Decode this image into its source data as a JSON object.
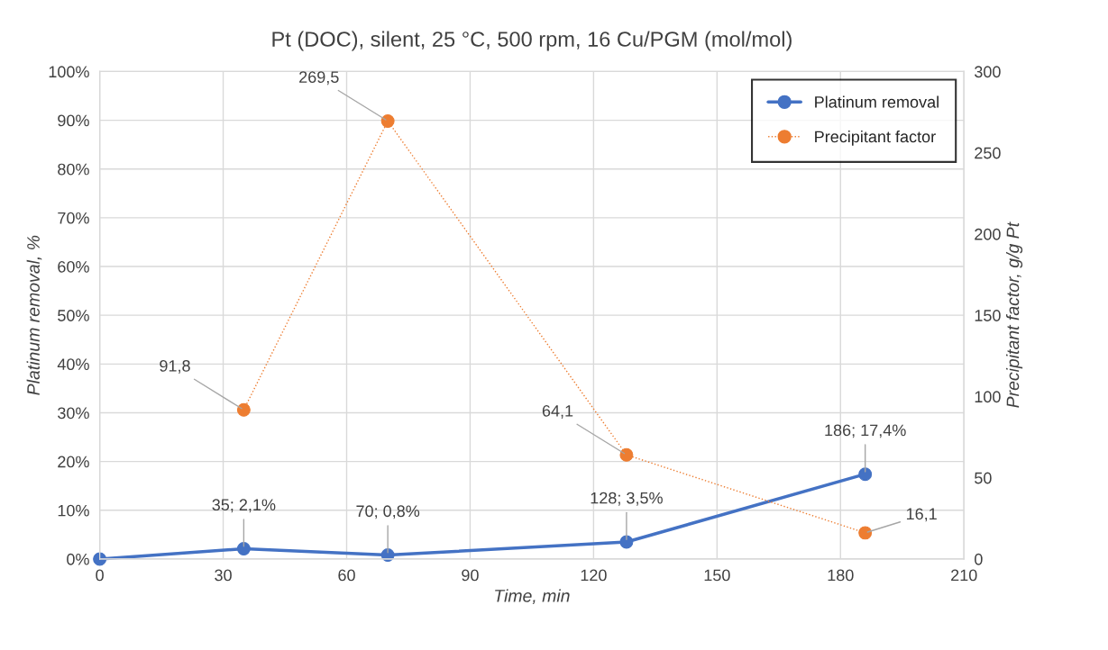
{
  "chart_data": {
    "type": "line",
    "title": "Pt (DOC), silent, 25 °C, 500 rpm, 16 Cu/PGM (mol/mol)",
    "xlabel": "Time, min",
    "ylabel": "Platinum removal, %",
    "y2label": "Precipitant factor, g/g Pt",
    "xlim": [
      0,
      210
    ],
    "xticks": [
      0,
      30,
      60,
      90,
      120,
      150,
      180,
      210
    ],
    "ylim": [
      0,
      100
    ],
    "yticks": [
      {
        "value": 0,
        "label": "0%"
      },
      {
        "value": 10,
        "label": "10%"
      },
      {
        "value": 20,
        "label": "20%"
      },
      {
        "value": 30,
        "label": "30%"
      },
      {
        "value": 40,
        "label": "40%"
      },
      {
        "value": 50,
        "label": "50%"
      },
      {
        "value": 60,
        "label": "60%"
      },
      {
        "value": 70,
        "label": "70%"
      },
      {
        "value": 80,
        "label": "80%"
      },
      {
        "value": 90,
        "label": "90%"
      },
      {
        "value": 100,
        "label": "100%"
      }
    ],
    "y2lim": [
      0,
      300
    ],
    "y2ticks": [
      0,
      50,
      100,
      150,
      200,
      250,
      300
    ],
    "grid": true,
    "legend": "top right",
    "marker": "circle",
    "series": [
      {
        "name": "Platinum removal",
        "color": "#4472c4",
        "line_style": "solid",
        "x": [
          0,
          35,
          70,
          128,
          186
        ],
        "values": [
          0,
          2.1,
          0.8,
          3.5,
          17.4
        ],
        "value_labels": [
          null,
          "35; 2,1%",
          "70; 0,8%",
          "128; 3,5%",
          "186; 17,4%"
        ]
      },
      {
        "name": "Precipitant factor",
        "color": "#ed7d31",
        "line_style": "dotted",
        "axis": "y2",
        "x": [
          35,
          70,
          128,
          186
        ],
        "values": [
          91.8,
          269.5,
          64.1,
          16.1
        ],
        "value_labels": [
          "91,8",
          "269,5",
          "64,1",
          "16,1"
        ]
      }
    ]
  }
}
